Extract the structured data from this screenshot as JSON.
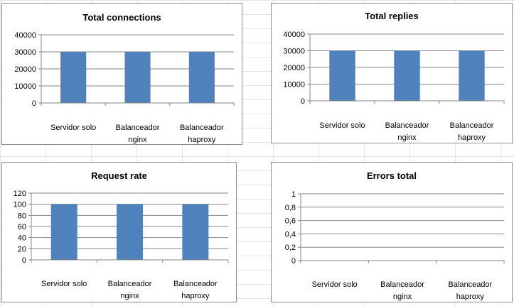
{
  "chart_data": [
    {
      "type": "bar",
      "title": "Total connections",
      "categories": [
        [
          "Servidor solo"
        ],
        [
          "Balanceador",
          "nginx"
        ],
        [
          "Balanceador",
          "haproxy"
        ]
      ],
      "values": [
        30000,
        30000,
        30000
      ],
      "yticks": [
        "0",
        "10000",
        "20000",
        "30000",
        "40000"
      ],
      "ylim": [
        0,
        40000
      ],
      "grid": true,
      "legend": "none",
      "bar_color": "#4f81bd"
    },
    {
      "type": "bar",
      "title": "Total replies",
      "categories": [
        [
          "Servidor solo"
        ],
        [
          "Balanceador",
          "nginx"
        ],
        [
          "Balanceador",
          "haproxy"
        ]
      ],
      "values": [
        30000,
        30000,
        30000
      ],
      "yticks": [
        "0",
        "10000",
        "20000",
        "30000",
        "40000"
      ],
      "ylim": [
        0,
        40000
      ],
      "grid": true,
      "legend": "none",
      "bar_color": "#4f81bd"
    },
    {
      "type": "bar",
      "title": "Request rate",
      "categories": [
        [
          "Servidor solo"
        ],
        [
          "Balanceador",
          "nginx"
        ],
        [
          "Balanceador",
          "haproxy"
        ]
      ],
      "values": [
        100,
        100,
        100
      ],
      "yticks": [
        "0",
        "20",
        "40",
        "60",
        "80",
        "100",
        "120"
      ],
      "ylim": [
        0,
        120
      ],
      "grid": true,
      "legend": "none",
      "bar_color": "#4f81bd"
    },
    {
      "type": "bar",
      "title": "Errors total",
      "categories": [
        [
          "Servidor solo"
        ],
        [
          "Balanceador",
          "nginx"
        ],
        [
          "Balanceador",
          "haproxy"
        ]
      ],
      "values": [
        0,
        0,
        0
      ],
      "yticks": [
        "0",
        "0,2",
        "0,4",
        "0,6",
        "0,8",
        "1"
      ],
      "ylim": [
        0,
        1
      ],
      "grid": true,
      "legend": "none",
      "bar_color": "#4f81bd"
    }
  ]
}
